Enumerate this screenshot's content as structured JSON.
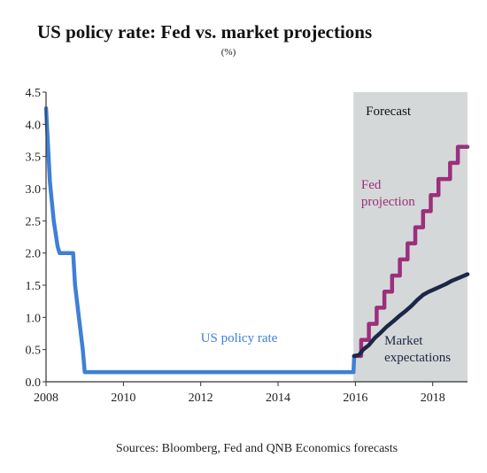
{
  "chart_data": {
    "type": "line",
    "title": "US policy rate: Fed vs. market projections",
    "subtitle": "(%)",
    "source": "Sources: Bloomberg, Fed and QNB Economics forecasts",
    "xlabel": "",
    "ylabel": "",
    "xlim": [
      2008,
      2018.9
    ],
    "ylim": [
      0,
      4.5
    ],
    "x_ticks": [
      "2008",
      "2010",
      "2012",
      "2014",
      "2016",
      "2018"
    ],
    "y_ticks": [
      "0.0",
      "0.5",
      "1.0",
      "1.5",
      "2.0",
      "2.5",
      "3.0",
      "3.5",
      "4.0",
      "4.5"
    ],
    "grid": false,
    "forecast_region": {
      "label": "Forecast",
      "start": 2015.95,
      "end": 2018.9
    },
    "colors": {
      "policy": "#3f7fd6",
      "fed": "#9b2f7d",
      "market": "#1d2747",
      "forecast_bg": "#d5d8d8"
    },
    "annotations": [
      {
        "series": "policy",
        "text": "US policy rate"
      },
      {
        "series": "fed",
        "lines": [
          "Fed",
          "projection"
        ]
      },
      {
        "series": "market",
        "lines": [
          "Market",
          "expectations"
        ]
      }
    ],
    "series": [
      {
        "key": "policy",
        "points": [
          [
            2008.0,
            4.25
          ],
          [
            2008.1,
            3.1
          ],
          [
            2008.2,
            2.5
          ],
          [
            2008.3,
            2.1
          ],
          [
            2008.35,
            2.0
          ],
          [
            2008.7,
            2.0
          ],
          [
            2008.75,
            1.5
          ],
          [
            2008.85,
            1.0
          ],
          [
            2008.95,
            0.5
          ],
          [
            2009.0,
            0.15
          ],
          [
            2015.95,
            0.15
          ],
          [
            2015.97,
            0.4
          ]
        ]
      },
      {
        "key": "fed",
        "points": [
          [
            2015.97,
            0.4
          ],
          [
            2016.15,
            0.4
          ],
          [
            2016.15,
            0.65
          ],
          [
            2016.35,
            0.65
          ],
          [
            2016.35,
            0.9
          ],
          [
            2016.55,
            0.9
          ],
          [
            2016.55,
            1.15
          ],
          [
            2016.75,
            1.15
          ],
          [
            2016.75,
            1.4
          ],
          [
            2016.95,
            1.4
          ],
          [
            2016.95,
            1.65
          ],
          [
            2017.15,
            1.65
          ],
          [
            2017.15,
            1.9
          ],
          [
            2017.35,
            1.9
          ],
          [
            2017.35,
            2.15
          ],
          [
            2017.55,
            2.15
          ],
          [
            2017.55,
            2.4
          ],
          [
            2017.75,
            2.4
          ],
          [
            2017.75,
            2.65
          ],
          [
            2017.95,
            2.65
          ],
          [
            2017.95,
            2.9
          ],
          [
            2018.15,
            2.9
          ],
          [
            2018.15,
            3.15
          ],
          [
            2018.45,
            3.15
          ],
          [
            2018.45,
            3.4
          ],
          [
            2018.65,
            3.4
          ],
          [
            2018.65,
            3.65
          ],
          [
            2018.9,
            3.65
          ]
        ]
      },
      {
        "key": "market",
        "points": [
          [
            2015.97,
            0.4
          ],
          [
            2016.1,
            0.42
          ],
          [
            2016.2,
            0.5
          ],
          [
            2016.35,
            0.57
          ],
          [
            2016.5,
            0.68
          ],
          [
            2016.65,
            0.76
          ],
          [
            2016.8,
            0.85
          ],
          [
            2017.0,
            0.95
          ],
          [
            2017.15,
            1.03
          ],
          [
            2017.3,
            1.1
          ],
          [
            2017.45,
            1.18
          ],
          [
            2017.6,
            1.27
          ],
          [
            2017.75,
            1.35
          ],
          [
            2017.9,
            1.4
          ],
          [
            2018.05,
            1.44
          ],
          [
            2018.2,
            1.48
          ],
          [
            2018.35,
            1.52
          ],
          [
            2018.5,
            1.57
          ],
          [
            2018.7,
            1.62
          ],
          [
            2018.9,
            1.67
          ]
        ]
      }
    ]
  }
}
